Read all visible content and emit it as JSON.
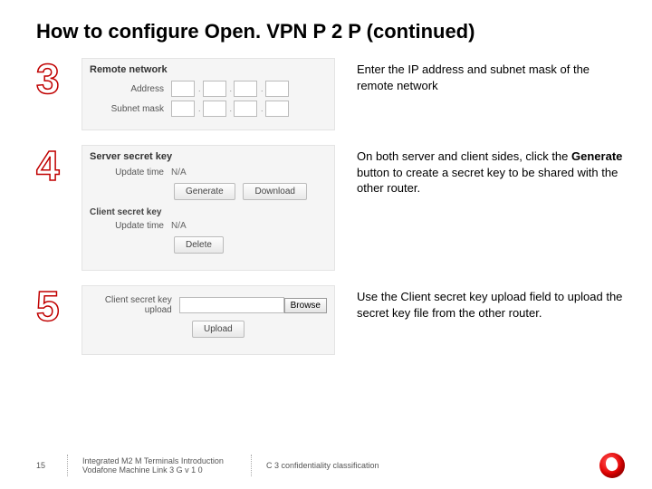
{
  "title": "How to configure Open. VPN P 2 P (continued)",
  "steps": [
    {
      "num": "3",
      "panel": {
        "heading": "Remote network",
        "rows": [
          {
            "label": "Address",
            "type": "octets"
          },
          {
            "label": "Subnet mask",
            "type": "octets"
          }
        ]
      },
      "desc_plain": "Enter the IP address and subnet mask of the remote network",
      "desc_html": "Enter the IP address and subnet mask of the remote network"
    },
    {
      "num": "4",
      "panel": {
        "heading": "Server secret key",
        "rows": [
          {
            "label": "Update time",
            "value": "N/A"
          }
        ],
        "buttons1": [
          "Generate",
          "Download"
        ],
        "subheading": "Client secret key",
        "rows2": [
          {
            "label": "Update time",
            "value": "N/A"
          }
        ],
        "buttons2": [
          "Delete"
        ]
      },
      "desc_html": "On both server and client sides, click the <b>Generate</b> button to create a secret key to be shared with the other router."
    },
    {
      "num": "5",
      "panel": {
        "upload_label": "Client secret key upload",
        "browse": "Browse",
        "upload_btn": "Upload"
      },
      "desc_plain": "Use the Client secret key upload field to upload the secret key file from the other router.",
      "desc_html": "Use the Client secret key upload field to upload the secret key file from the other router."
    }
  ],
  "footer": {
    "page": "15",
    "left": "Integrated M2 M Terminals Introduction Vodafone Machine Link 3 G v 1 0",
    "right": "C 3 confidentiality classification"
  },
  "colors": {
    "accent": "#c00000",
    "brand": "#e60000"
  }
}
